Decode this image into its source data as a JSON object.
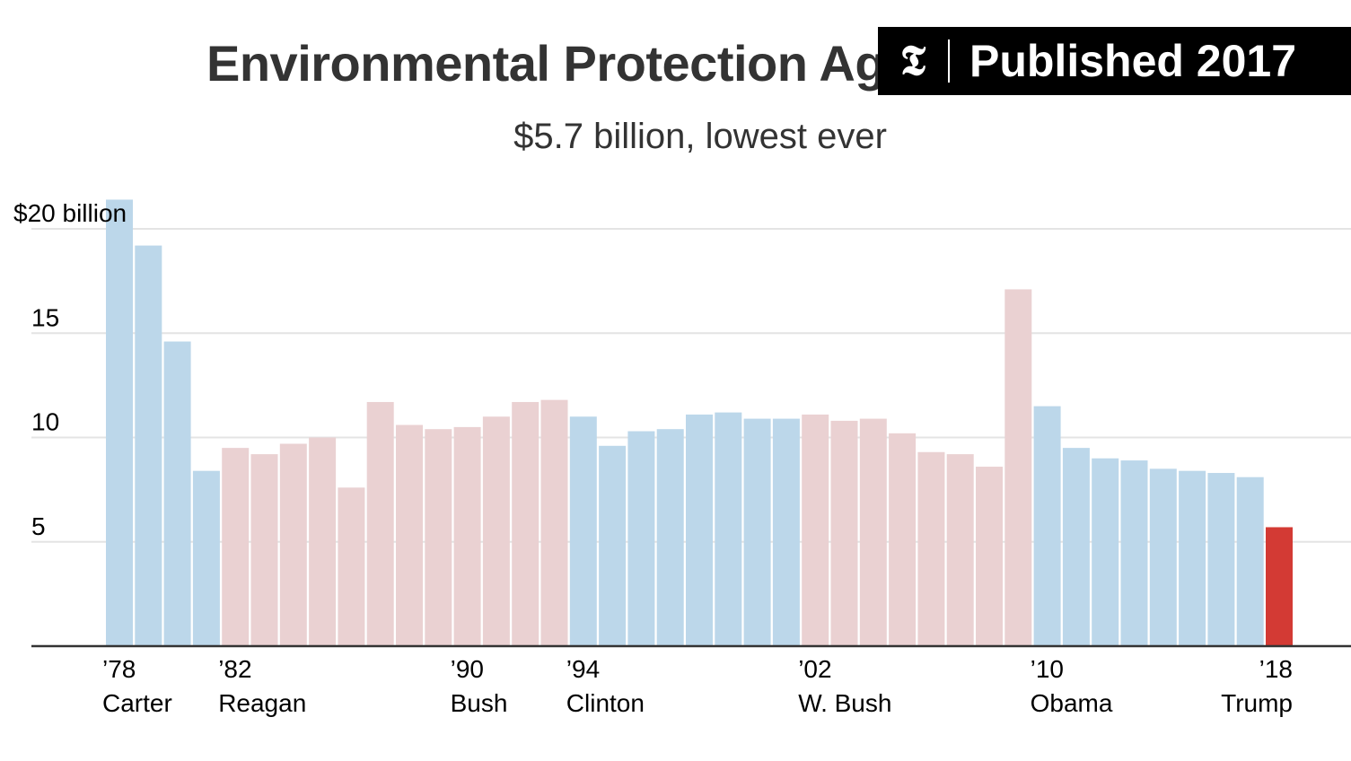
{
  "header": {
    "title": "Environmental Protection Agency",
    "subtitle": "$5.7 billion, lowest ever"
  },
  "badge": {
    "logo": "𝕿",
    "text": "Published 2017"
  },
  "colors": {
    "democrat": "#bcd7ea",
    "republican": "#ead1d2",
    "highlight": "#d33a34",
    "grid": "#e4e4e4",
    "axis": "#333333"
  },
  "chart_data": {
    "type": "bar",
    "title": "Environmental Protection Agency",
    "subtitle": "$5.7 billion, lowest ever",
    "xlabel": "",
    "ylabel": "",
    "unit": "billions of dollars",
    "ylim": [
      0,
      21
    ],
    "yticks": [
      {
        "value": 20,
        "label": "$20 billion"
      },
      {
        "value": 15,
        "label": "15"
      },
      {
        "value": 10,
        "label": "10"
      },
      {
        "value": 5,
        "label": "5"
      }
    ],
    "categories": [
      1978,
      1979,
      1980,
      1981,
      1982,
      1983,
      1984,
      1985,
      1986,
      1987,
      1988,
      1989,
      1990,
      1991,
      1992,
      1993,
      1994,
      1995,
      1996,
      1997,
      1998,
      1999,
      2000,
      2001,
      2002,
      2003,
      2004,
      2005,
      2006,
      2007,
      2008,
      2009,
      2010,
      2011,
      2012,
      2013,
      2014,
      2015,
      2016,
      2017,
      2018
    ],
    "values": [
      21.4,
      19.2,
      14.6,
      8.4,
      9.5,
      9.2,
      9.7,
      10.0,
      7.6,
      11.7,
      10.6,
      10.4,
      10.5,
      11.0,
      11.7,
      11.8,
      11.0,
      9.6,
      10.3,
      10.4,
      11.1,
      11.2,
      10.9,
      10.9,
      11.1,
      10.8,
      10.9,
      10.2,
      9.3,
      9.2,
      8.6,
      17.1,
      11.5,
      9.5,
      9.0,
      8.9,
      8.5,
      8.4,
      8.3,
      8.1,
      5.7
    ],
    "parties": [
      "D",
      "D",
      "D",
      "D",
      "R",
      "R",
      "R",
      "R",
      "R",
      "R",
      "R",
      "R",
      "R",
      "R",
      "R",
      "R",
      "D",
      "D",
      "D",
      "D",
      "D",
      "D",
      "D",
      "D",
      "R",
      "R",
      "R",
      "R",
      "R",
      "R",
      "R",
      "R",
      "D",
      "D",
      "D",
      "D",
      "D",
      "D",
      "D",
      "D",
      "T"
    ],
    "year_labels": [
      {
        "index": 0,
        "label": "’78"
      },
      {
        "index": 4,
        "label": "’82"
      },
      {
        "index": 12,
        "label": "’90"
      },
      {
        "index": 16,
        "label": "’94"
      },
      {
        "index": 24,
        "label": "’02"
      },
      {
        "index": 32,
        "label": "’10"
      },
      {
        "index": 40,
        "label": "’18"
      }
    ],
    "presidents": [
      {
        "index": 0,
        "label": "Carter"
      },
      {
        "index": 4,
        "label": "Reagan"
      },
      {
        "index": 12,
        "label": "Bush"
      },
      {
        "index": 16,
        "label": "Clinton"
      },
      {
        "index": 24,
        "label": "W. Bush"
      },
      {
        "index": 32,
        "label": "Obama"
      },
      {
        "index": 40,
        "label": "Trump"
      }
    ]
  }
}
